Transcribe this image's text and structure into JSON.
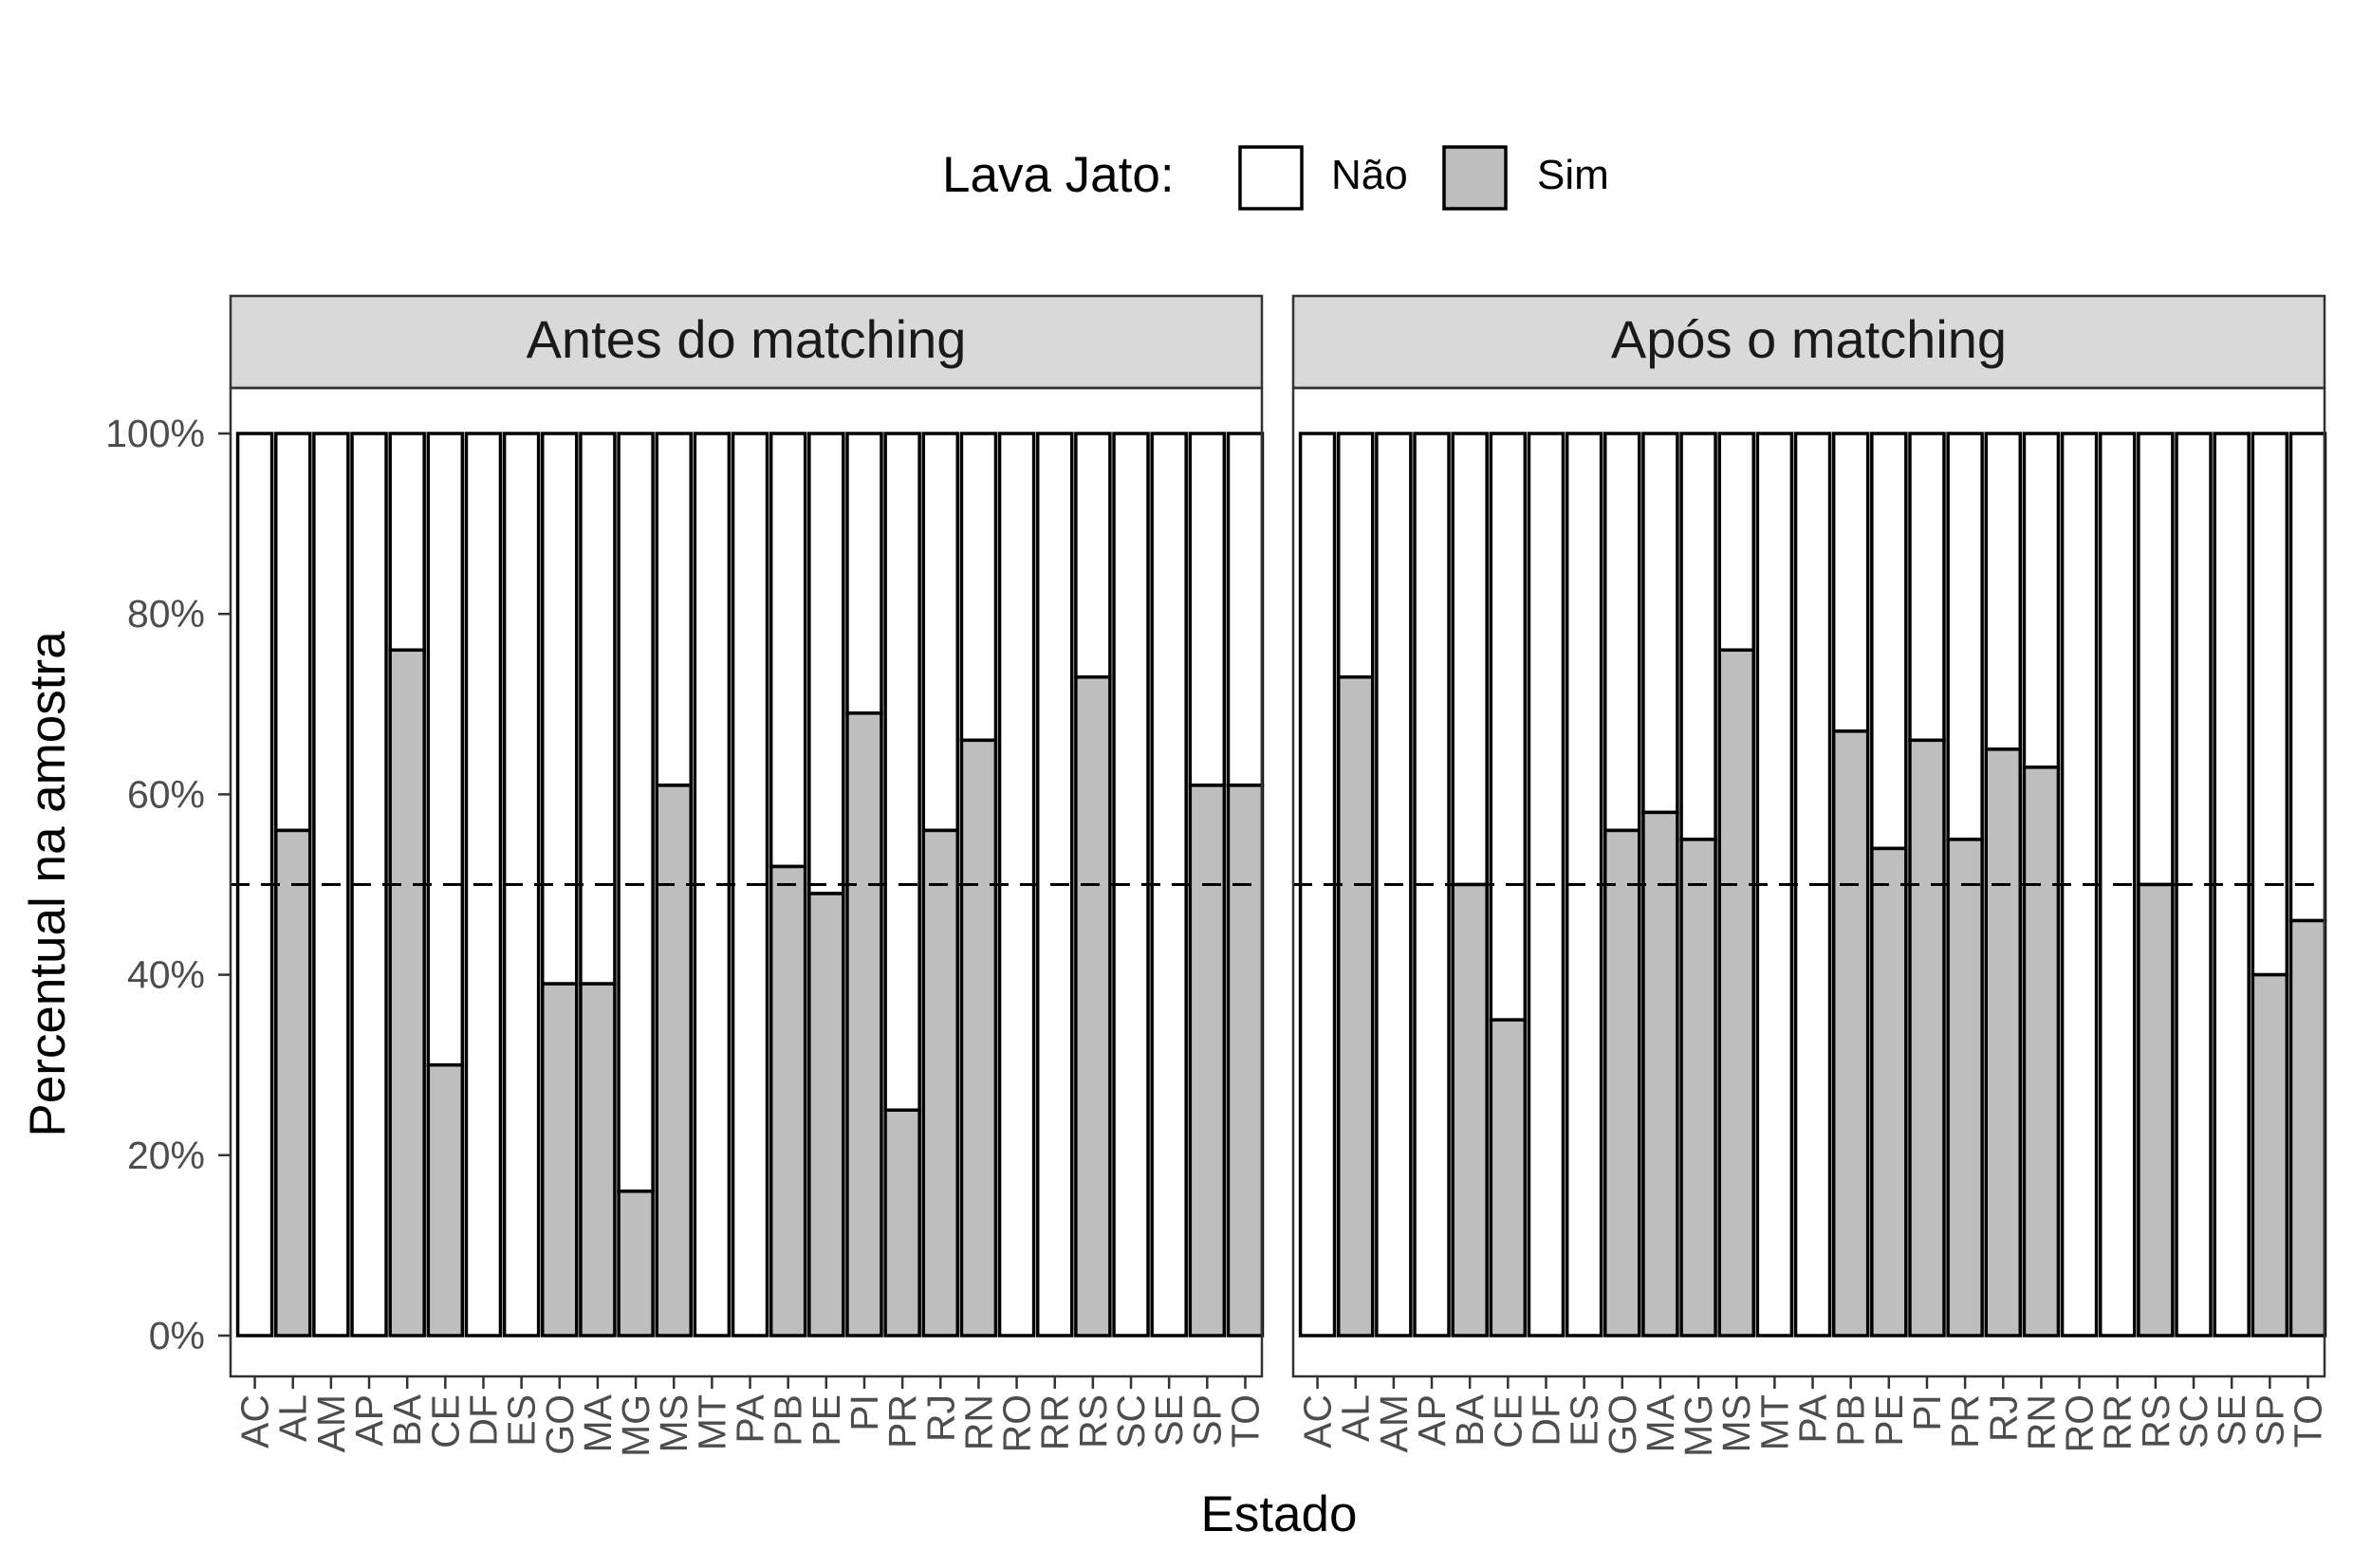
{
  "chart_data": {
    "type": "bar",
    "stacked": "percent",
    "legend": {
      "title": "Lava Jato:",
      "position": "top",
      "items": [
        {
          "label": "Não",
          "color": "#ffffff"
        },
        {
          "label": "Sim",
          "color": "#bebebe"
        }
      ]
    },
    "xlabel": "Estado",
    "ylabel": "Percentual na amostra",
    "ylim": [
      0,
      100
    ],
    "yticks": [
      "0%",
      "20%",
      "40%",
      "60%",
      "80%",
      "100%"
    ],
    "yticks_values": [
      0,
      20,
      40,
      60,
      80,
      100
    ],
    "reference_line": {
      "y": 50,
      "style": "dashed"
    },
    "categories": [
      "AC",
      "AL",
      "AM",
      "AP",
      "BA",
      "CE",
      "DF",
      "ES",
      "GO",
      "MA",
      "MG",
      "MS",
      "MT",
      "PA",
      "PB",
      "PE",
      "PI",
      "PR",
      "RJ",
      "RN",
      "RO",
      "RR",
      "RS",
      "SC",
      "SE",
      "SP",
      "TO"
    ],
    "panels": [
      {
        "title": "Antes do matching",
        "series": [
          {
            "name": "Sim",
            "values": [
              0,
              56,
              0,
              0,
              76,
              30,
              0,
              0,
              39,
              39,
              16,
              61,
              0,
              0,
              52,
              49,
              69,
              25,
              56,
              66,
              0,
              0,
              73,
              0,
              0,
              61,
              61
            ]
          }
        ]
      },
      {
        "title": "Após o matching",
        "series": [
          {
            "name": "Sim",
            "values": [
              0,
              73,
              0,
              0,
              50,
              35,
              0,
              0,
              56,
              58,
              55,
              76,
              0,
              0,
              67,
              54,
              66,
              55,
              65,
              63,
              0,
              0,
              50,
              0,
              0,
              40,
              46
            ]
          }
        ]
      }
    ]
  },
  "colors": {
    "strip_background": "#d9d9d9",
    "panel_border": "#333333",
    "bar_outline": "#000000",
    "sim_fill": "#bebebe",
    "nao_fill": "#ffffff",
    "tick_text": "#4d4d4d",
    "text": "#000000"
  }
}
